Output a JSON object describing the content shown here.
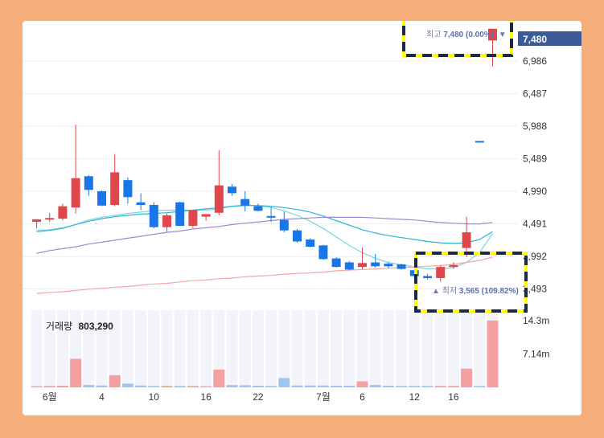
{
  "chart_data": {
    "type": "candlestick",
    "y_ticks": [
      "6,986",
      "6,487",
      "5,988",
      "5,489",
      "4,990",
      "4,491",
      "3,992",
      "3,493"
    ],
    "y_tick_values": [
      6986,
      6487,
      5988,
      5489,
      4990,
      4491,
      3992,
      3493
    ],
    "ylim": [
      3290,
      7600
    ],
    "current_price": "7,480",
    "high_label_prefix": "최고",
    "high_label_value": "7,480 (0.00%)",
    "high_marker": "▼",
    "low_label_prefix": "최저",
    "low_label_value": "3,565 (109.82%)",
    "low_marker": "▲",
    "x_labels": [
      {
        "i": 1,
        "label": "6월"
      },
      {
        "i": 5,
        "label": "4"
      },
      {
        "i": 9,
        "label": "10"
      },
      {
        "i": 13,
        "label": "16"
      },
      {
        "i": 17,
        "label": "22"
      },
      {
        "i": 22,
        "label": "7월"
      },
      {
        "i": 25,
        "label": "6"
      },
      {
        "i": 29,
        "label": "12"
      },
      {
        "i": 32,
        "label": "16"
      }
    ],
    "volume": {
      "label": "거래량",
      "value": "803,290",
      "ticks": [
        "14.3m",
        "7.14m"
      ],
      "tick_values": [
        14.3,
        7.14
      ],
      "max": 16.5
    },
    "candles": [
      {
        "o": 4520,
        "h": 4560,
        "l": 4420,
        "c": 4560,
        "v": 0.25
      },
      {
        "o": 4560,
        "h": 4660,
        "l": 4520,
        "c": 4580,
        "v": 0.3
      },
      {
        "o": 4570,
        "h": 4800,
        "l": 4540,
        "c": 4760,
        "v": 0.35
      },
      {
        "o": 4740,
        "h": 6010,
        "l": 4650,
        "c": 5190,
        "v": 6.1
      },
      {
        "o": 5220,
        "h": 5240,
        "l": 4920,
        "c": 5010,
        "v": 0.5
      },
      {
        "o": 4990,
        "h": 5000,
        "l": 4760,
        "c": 4770,
        "v": 0.4
      },
      {
        "o": 4780,
        "h": 5560,
        "l": 4760,
        "c": 5280,
        "v": 2.6
      },
      {
        "o": 5160,
        "h": 5200,
        "l": 4800,
        "c": 4900,
        "v": 0.8
      },
      {
        "o": 4820,
        "h": 4960,
        "l": 4700,
        "c": 4780,
        "v": 0.4
      },
      {
        "o": 4780,
        "h": 4820,
        "l": 4420,
        "c": 4440,
        "v": 0.3
      },
      {
        "o": 4440,
        "h": 4650,
        "l": 4370,
        "c": 4620,
        "v": 0.3
      },
      {
        "o": 4820,
        "h": 4830,
        "l": 4460,
        "c": 4460,
        "v": 0.3
      },
      {
        "o": 4460,
        "h": 4700,
        "l": 4420,
        "c": 4700,
        "v": 0.3
      },
      {
        "o": 4600,
        "h": 4640,
        "l": 4540,
        "c": 4640,
        "v": 0.25
      },
      {
        "o": 4660,
        "h": 5620,
        "l": 4620,
        "c": 5080,
        "v": 3.8
      },
      {
        "o": 5060,
        "h": 5100,
        "l": 4920,
        "c": 4960,
        "v": 0.5
      },
      {
        "o": 4870,
        "h": 4990,
        "l": 4680,
        "c": 4770,
        "v": 0.45
      },
      {
        "o": 4760,
        "h": 4800,
        "l": 4680,
        "c": 4690,
        "v": 0.35
      },
      {
        "o": 4610,
        "h": 4740,
        "l": 4520,
        "c": 4590,
        "v": 0.3
      },
      {
        "o": 4550,
        "h": 4680,
        "l": 4360,
        "c": 4390,
        "v": 2.0
      },
      {
        "o": 4390,
        "h": 4410,
        "l": 4200,
        "c": 4220,
        "v": 0.4
      },
      {
        "o": 4250,
        "h": 4270,
        "l": 4130,
        "c": 4140,
        "v": 0.4
      },
      {
        "o": 4160,
        "h": 4170,
        "l": 3940,
        "c": 3950,
        "v": 0.4
      },
      {
        "o": 3960,
        "h": 3980,
        "l": 3820,
        "c": 3830,
        "v": 0.35
      },
      {
        "o": 3900,
        "h": 3920,
        "l": 3780,
        "c": 3790,
        "v": 0.35
      },
      {
        "o": 3830,
        "h": 4130,
        "l": 3800,
        "c": 3890,
        "v": 1.3
      },
      {
        "o": 3900,
        "h": 4030,
        "l": 3820,
        "c": 3840,
        "v": 0.5
      },
      {
        "o": 3880,
        "h": 3900,
        "l": 3810,
        "c": 3840,
        "v": 0.35
      },
      {
        "o": 3870,
        "h": 3880,
        "l": 3790,
        "c": 3800,
        "v": 0.3
      },
      {
        "o": 3780,
        "h": 3800,
        "l": 3650,
        "c": 3690,
        "v": 0.3
      },
      {
        "o": 3690,
        "h": 3720,
        "l": 3640,
        "c": 3660,
        "v": 0.3
      },
      {
        "o": 3660,
        "h": 3860,
        "l": 3600,
        "c": 3830,
        "v": 0.3
      },
      {
        "o": 3830,
        "h": 3900,
        "l": 3800,
        "c": 3860,
        "v": 0.3
      },
      {
        "o": 4120,
        "h": 4600,
        "l": 3980,
        "c": 4360,
        "v": 4.0
      },
      {
        "o": 5760,
        "h": 5760,
        "l": 5740,
        "c": 5750,
        "v": 0.3
      },
      {
        "o": 7300,
        "h": 7480,
        "l": 6900,
        "c": 7480,
        "v": 14.3
      }
    ],
    "ma_lines": [
      {
        "color": "#7dd3e0",
        "values": [
          4390,
          4400,
          4430,
          4480,
          4550,
          4590,
          4620,
          4650,
          4670,
          4690,
          4700,
          4700,
          4700,
          4700,
          4720,
          4760,
          4780,
          4770,
          4740,
          4690,
          4620,
          4530,
          4420,
          4290,
          4160,
          4050,
          3960,
          3900,
          3860,
          3830,
          3800,
          3800,
          3820,
          3900,
          4050,
          4340
        ]
      },
      {
        "color": "#2ab5d4",
        "values": [
          4370,
          4390,
          4420,
          4480,
          4530,
          4570,
          4600,
          4620,
          4640,
          4650,
          4660,
          4680,
          4700,
          4720,
          4740,
          4760,
          4770,
          4770,
          4760,
          4740,
          4710,
          4670,
          4610,
          4540,
          4470,
          4400,
          4350,
          4310,
          4280,
          4250,
          4220,
          4200,
          4190,
          4200,
          4250,
          4370
        ]
      },
      {
        "color": "#9b8bd4",
        "values": [
          4040,
          4080,
          4110,
          4140,
          4180,
          4210,
          4240,
          4270,
          4300,
          4330,
          4360,
          4380,
          4410,
          4430,
          4450,
          4480,
          4500,
          4520,
          4540,
          4560,
          4570,
          4580,
          4590,
          4590,
          4590,
          4590,
          4580,
          4570,
          4560,
          4550,
          4530,
          4510,
          4500,
          4490,
          4490,
          4510
        ]
      },
      {
        "color": "#f5a6a6",
        "values": [
          3420,
          3440,
          3450,
          3470,
          3490,
          3500,
          3520,
          3530,
          3550,
          3570,
          3580,
          3600,
          3620,
          3630,
          3650,
          3660,
          3680,
          3690,
          3700,
          3720,
          3730,
          3740,
          3750,
          3770,
          3780,
          3790,
          3800,
          3810,
          3820,
          3830,
          3840,
          3850,
          3870,
          3900,
          3930,
          3980
        ]
      }
    ],
    "colors": {
      "up": "#e0474c",
      "down": "#1976e8",
      "vol_up": "#f4a0a3",
      "vol_down": "#9cc7f0",
      "price_tag": "#3d5a98",
      "highlight": "#ffff00"
    }
  }
}
